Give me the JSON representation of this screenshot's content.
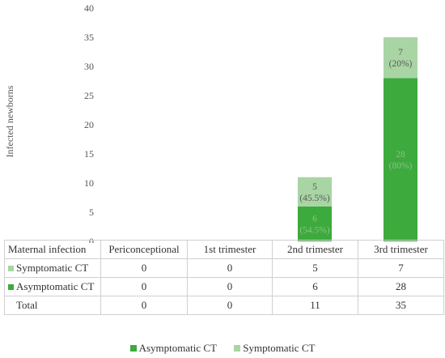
{
  "chart_data": {
    "type": "bar",
    "stacked": true,
    "ylabel": "Infected newborns",
    "xlabel": "",
    "title": "",
    "ylim": [
      0,
      40
    ],
    "yticks": [
      0,
      5,
      10,
      15,
      20,
      25,
      30,
      35,
      40
    ],
    "grid": false,
    "legend_position": "bottom",
    "categories": [
      "Periconceptional",
      "1st trimester",
      "2nd trimester",
      "3rd trimester"
    ],
    "series": [
      {
        "name": "Asymptomatic CT",
        "color": "#3daa3d",
        "values": [
          0,
          0,
          6,
          28
        ],
        "labels": [
          "",
          "",
          "6\n(54.5%)",
          "28\n(80%)"
        ]
      },
      {
        "name": "Symptomatic CT",
        "color": "#a8d5a3",
        "values": [
          0,
          0,
          5,
          7
        ],
        "labels": [
          "",
          "",
          "5\n(45.5%)",
          "7\n(20%)"
        ]
      }
    ]
  },
  "table": {
    "header": "Maternal infection",
    "columns": [
      "Periconceptional",
      "1st trimester",
      "2nd trimester",
      "3rd trimester"
    ],
    "rows": [
      {
        "name": "Symptomatic CT",
        "color": "#a8d5a3",
        "values": [
          "0",
          "0",
          "5",
          "7"
        ]
      },
      {
        "name": "Asymptomatic CT",
        "color": "#3daa3d",
        "values": [
          "0",
          "0",
          "6",
          "28"
        ]
      },
      {
        "name": "Total",
        "color": "",
        "values": [
          "0",
          "0",
          "11",
          "35"
        ]
      }
    ]
  },
  "legend": [
    {
      "name": "Asymptomatic CT",
      "color": "#3daa3d"
    },
    {
      "name": "Symptomatic CT",
      "color": "#a8d5a3"
    }
  ]
}
